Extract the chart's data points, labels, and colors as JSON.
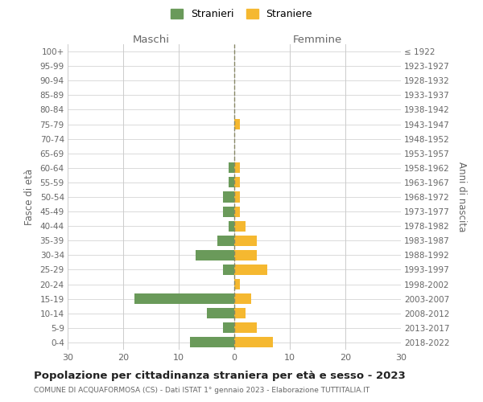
{
  "age_groups": [
    "0-4",
    "5-9",
    "10-14",
    "15-19",
    "20-24",
    "25-29",
    "30-34",
    "35-39",
    "40-44",
    "45-49",
    "50-54",
    "55-59",
    "60-64",
    "65-69",
    "70-74",
    "75-79",
    "80-84",
    "85-89",
    "90-94",
    "95-99",
    "100+"
  ],
  "birth_years": [
    "2018-2022",
    "2013-2017",
    "2008-2012",
    "2003-2007",
    "1998-2002",
    "1993-1997",
    "1988-1992",
    "1983-1987",
    "1978-1982",
    "1973-1977",
    "1968-1972",
    "1963-1967",
    "1958-1962",
    "1953-1957",
    "1948-1952",
    "1943-1947",
    "1938-1942",
    "1933-1937",
    "1928-1932",
    "1923-1927",
    "≤ 1922"
  ],
  "maschi": [
    8,
    2,
    5,
    18,
    0,
    2,
    7,
    3,
    1,
    2,
    2,
    1,
    1,
    0,
    0,
    0,
    0,
    0,
    0,
    0,
    0
  ],
  "femmine": [
    7,
    4,
    2,
    3,
    1,
    6,
    4,
    4,
    2,
    1,
    1,
    1,
    1,
    0,
    0,
    1,
    0,
    0,
    0,
    0,
    0
  ],
  "color_maschi": "#6a9a5a",
  "color_femmine": "#f5b830",
  "title": "Popolazione per cittadinanza straniera per età e sesso - 2023",
  "subtitle": "COMUNE DI ACQUAFORMOSA (CS) - Dati ISTAT 1° gennaio 2023 - Elaborazione TUTTITALIA.IT",
  "xlabel_left": "Maschi",
  "xlabel_right": "Femmine",
  "ylabel_left": "Fasce di età",
  "ylabel_right": "Anni di nascita",
  "legend_maschi": "Stranieri",
  "legend_femmine": "Straniere",
  "xlim": 30,
  "background_color": "#ffffff",
  "grid_color": "#cccccc",
  "text_color": "#666666",
  "dashed_line_color": "#888866"
}
